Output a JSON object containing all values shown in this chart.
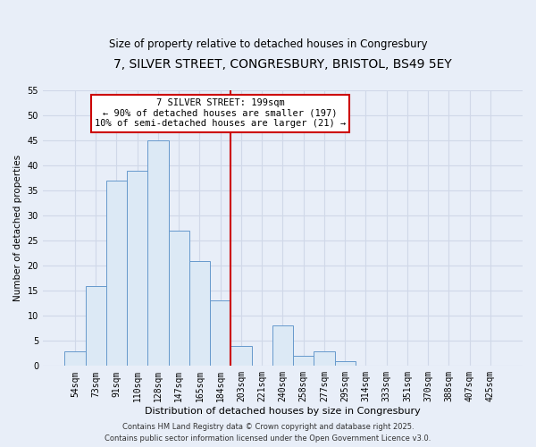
{
  "title": "7, SILVER STREET, CONGRESBURY, BRISTOL, BS49 5EY",
  "subtitle": "Size of property relative to detached houses in Congresbury",
  "xlabel": "Distribution of detached houses by size in Congresbury",
  "ylabel": "Number of detached properties",
  "bar_labels": [
    "54sqm",
    "73sqm",
    "91sqm",
    "110sqm",
    "128sqm",
    "147sqm",
    "165sqm",
    "184sqm",
    "203sqm",
    "221sqm",
    "240sqm",
    "258sqm",
    "277sqm",
    "295sqm",
    "314sqm",
    "333sqm",
    "351sqm",
    "370sqm",
    "388sqm",
    "407sqm",
    "425sqm"
  ],
  "bar_values": [
    3,
    16,
    37,
    39,
    45,
    27,
    21,
    13,
    4,
    0,
    8,
    2,
    3,
    1,
    0,
    0,
    0,
    0,
    0,
    0,
    0
  ],
  "bar_color": "#dce9f5",
  "bar_edge_color": "#6699cc",
  "vline_color": "#cc0000",
  "ylim": [
    0,
    55
  ],
  "yticks": [
    0,
    5,
    10,
    15,
    20,
    25,
    30,
    35,
    40,
    45,
    50,
    55
  ],
  "annotation_title": "7 SILVER STREET: 199sqm",
  "annotation_line1": "← 90% of detached houses are smaller (197)",
  "annotation_line2": "10% of semi-detached houses are larger (21) →",
  "annotation_box_color": "#ffffff",
  "annotation_box_edge": "#cc0000",
  "background_color": "#e8eef8",
  "grid_color": "#d0d8e8",
  "footer_line1": "Contains HM Land Registry data © Crown copyright and database right 2025.",
  "footer_line2": "Contains public sector information licensed under the Open Government Licence v3.0.",
  "title_fontsize": 10,
  "subtitle_fontsize": 8.5,
  "xlabel_fontsize": 8,
  "ylabel_fontsize": 7.5,
  "tick_fontsize": 7,
  "annotation_fontsize": 7.5,
  "footer_fontsize": 6
}
